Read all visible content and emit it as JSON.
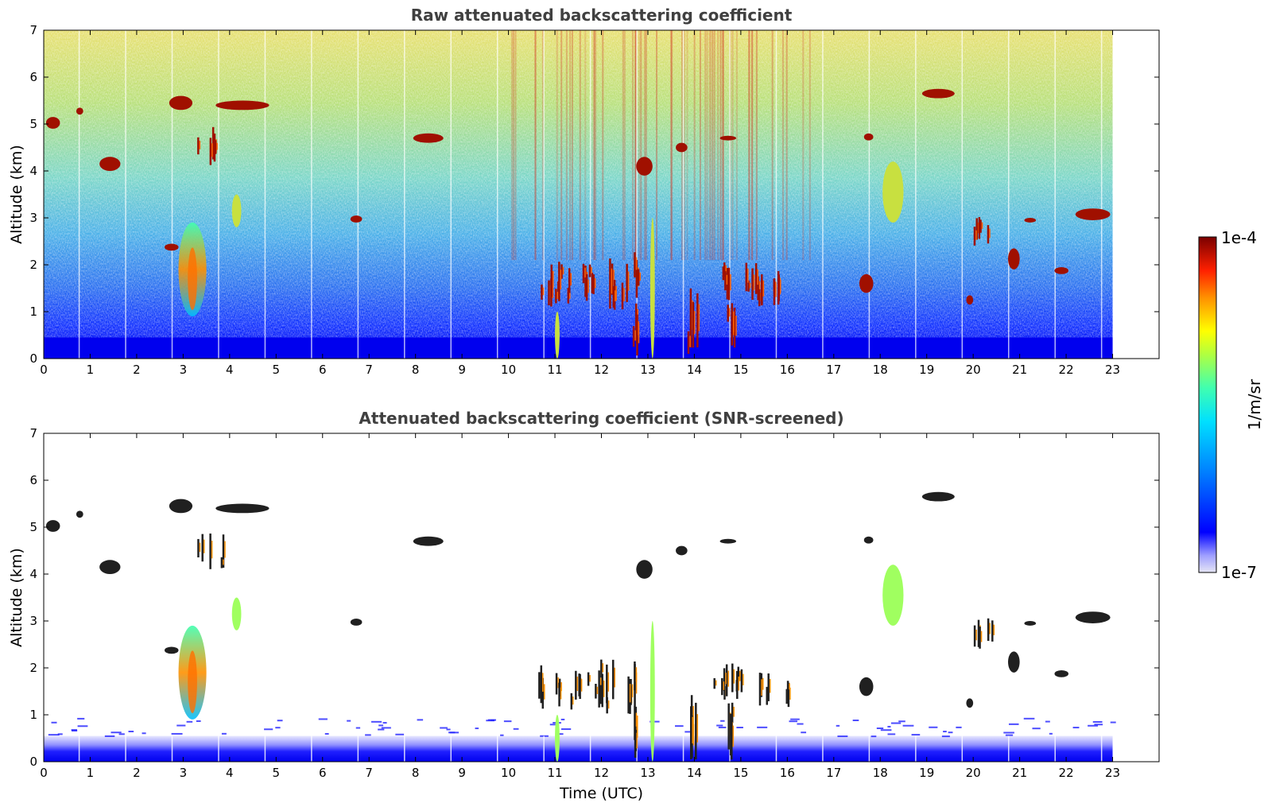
{
  "chart_data": [
    {
      "type": "heatmap",
      "title": "Raw attenuated backscattering coefficient",
      "xlabel": "",
      "ylabel": "Altitude (km)",
      "xlim": [
        0,
        24
      ],
      "ylim": [
        0,
        7
      ],
      "xticks": [
        "0",
        "1",
        "2",
        "3",
        "4",
        "5",
        "6",
        "7",
        "8",
        "9",
        "10",
        "11",
        "12",
        "13",
        "14",
        "15",
        "16",
        "17",
        "18",
        "19",
        "20",
        "21",
        "22",
        "23"
      ],
      "yticks": [
        "0",
        "1",
        "2",
        "3",
        "4",
        "5",
        "6",
        "7"
      ],
      "data_extent_hours": [
        0,
        23
      ],
      "clouds": [
        {
          "t0": 0.05,
          "t1": 0.35,
          "z0": 4.9,
          "z1": 5.15,
          "level": "high"
        },
        {
          "t0": 0.7,
          "t1": 0.85,
          "z0": 5.2,
          "z1": 5.35,
          "level": "high"
        },
        {
          "t0": 1.2,
          "t1": 1.65,
          "z0": 4.0,
          "z1": 4.3,
          "level": "high"
        },
        {
          "t0": 2.6,
          "t1": 2.9,
          "z0": 2.3,
          "z1": 2.45,
          "level": "high"
        },
        {
          "t0": 2.7,
          "t1": 3.2,
          "z0": 5.3,
          "z1": 5.6,
          "level": "high"
        },
        {
          "t0": 3.3,
          "t1": 3.85,
          "z0": 4.1,
          "z1": 5.0,
          "level": "high"
        },
        {
          "t0": 3.7,
          "t1": 4.85,
          "z0": 5.3,
          "z1": 5.5,
          "level": "high"
        },
        {
          "t0": 4.05,
          "t1": 4.25,
          "z0": 2.8,
          "z1": 3.5,
          "level": "mid"
        },
        {
          "t0": 6.6,
          "t1": 6.85,
          "z0": 2.9,
          "z1": 3.05,
          "level": "high"
        },
        {
          "t0": 7.95,
          "t1": 8.6,
          "z0": 4.6,
          "z1": 4.8,
          "level": "high"
        },
        {
          "t0": 13.6,
          "t1": 13.85,
          "z0": 4.4,
          "z1": 4.6,
          "level": "high"
        },
        {
          "t0": 12.75,
          "t1": 13.1,
          "z0": 3.9,
          "z1": 4.3,
          "level": "high"
        },
        {
          "t0": 14.55,
          "t1": 14.9,
          "z0": 4.65,
          "z1": 4.75,
          "level": "high"
        },
        {
          "t0": 17.65,
          "t1": 17.85,
          "z0": 4.65,
          "z1": 4.8,
          "level": "high"
        },
        {
          "t0": 18.05,
          "t1": 18.5,
          "z0": 2.9,
          "z1": 4.2,
          "level": "mid"
        },
        {
          "t0": 18.9,
          "t1": 19.6,
          "z0": 5.55,
          "z1": 5.75,
          "level": "high"
        },
        {
          "t0": 19.95,
          "t1": 20.45,
          "z0": 2.4,
          "z1": 3.1,
          "level": "high"
        },
        {
          "t0": 20.75,
          "t1": 21.0,
          "z0": 1.9,
          "z1": 2.35,
          "level": "high"
        },
        {
          "t0": 21.1,
          "t1": 21.35,
          "z0": 2.9,
          "z1": 3.0,
          "level": "high"
        },
        {
          "t0": 21.75,
          "t1": 22.05,
          "z0": 1.8,
          "z1": 1.95,
          "level": "high"
        },
        {
          "t0": 22.2,
          "t1": 22.95,
          "z0": 2.95,
          "z1": 3.2,
          "level": "high"
        },
        {
          "t0": 17.55,
          "t1": 17.85,
          "z0": 1.4,
          "z1": 1.8,
          "level": "high"
        },
        {
          "t0": 19.85,
          "t1": 20.0,
          "z0": 1.15,
          "z1": 1.35,
          "level": "high"
        },
        {
          "t0": 2.9,
          "t1": 3.5,
          "z0": 0.9,
          "z1": 2.9,
          "level": "plume"
        },
        {
          "t0": 10.5,
          "t1": 12.1,
          "z0": 1.1,
          "z1": 2.1,
          "level": "high"
        },
        {
          "t0": 11.9,
          "t1": 12.8,
          "z0": 1.0,
          "z1": 2.3,
          "level": "high"
        },
        {
          "t0": 13.6,
          "t1": 14.05,
          "z0": 0.0,
          "z1": 1.6,
          "level": "high"
        },
        {
          "t0": 14.4,
          "t1": 15.4,
          "z0": 1.2,
          "z1": 2.1,
          "level": "high"
        },
        {
          "t0": 15.35,
          "t1": 16.05,
          "z0": 1.0,
          "z1": 1.9,
          "level": "high"
        },
        {
          "t0": 12.65,
          "t1": 12.75,
          "z0": 0.0,
          "z1": 1.2,
          "level": "high"
        },
        {
          "t0": 14.65,
          "t1": 14.85,
          "z0": 0.0,
          "z1": 1.3,
          "level": "high"
        },
        {
          "t0": 11.0,
          "t1": 11.1,
          "z0": 0.0,
          "z1": 1.0,
          "level": "mid"
        },
        {
          "t0": 13.05,
          "t1": 13.15,
          "z0": 0.0,
          "z1": 3.0,
          "level": "mid"
        }
      ]
    },
    {
      "type": "heatmap",
      "title": "Attenuated backscattering coefficient (SNR-screened)",
      "xlabel": "Time (UTC)",
      "ylabel": "Altitude (km)",
      "xlim": [
        0,
        24
      ],
      "ylim": [
        0,
        7
      ],
      "xticks": [
        "0",
        "1",
        "2",
        "3",
        "4",
        "5",
        "6",
        "7",
        "8",
        "9",
        "10",
        "11",
        "12",
        "13",
        "14",
        "15",
        "16",
        "17",
        "18",
        "19",
        "20",
        "21",
        "22",
        "23"
      ],
      "yticks": [
        "0",
        "1",
        "2",
        "3",
        "4",
        "5",
        "6",
        "7"
      ],
      "data_extent_hours": [
        0,
        23
      ],
      "boundary_layer_top_km": 0.55
    }
  ],
  "colorbar": {
    "label": "1/m/sr",
    "max_label": "1e-4",
    "min_label": "1e-7",
    "colormap": [
      "#e6e6f5",
      "#a0a0ff",
      "#0000ff",
      "#0090ff",
      "#00e0ff",
      "#40ffb0",
      "#a0ff40",
      "#ffff00",
      "#ff9000",
      "#ff2000",
      "#b00000",
      "#7a0000"
    ]
  }
}
